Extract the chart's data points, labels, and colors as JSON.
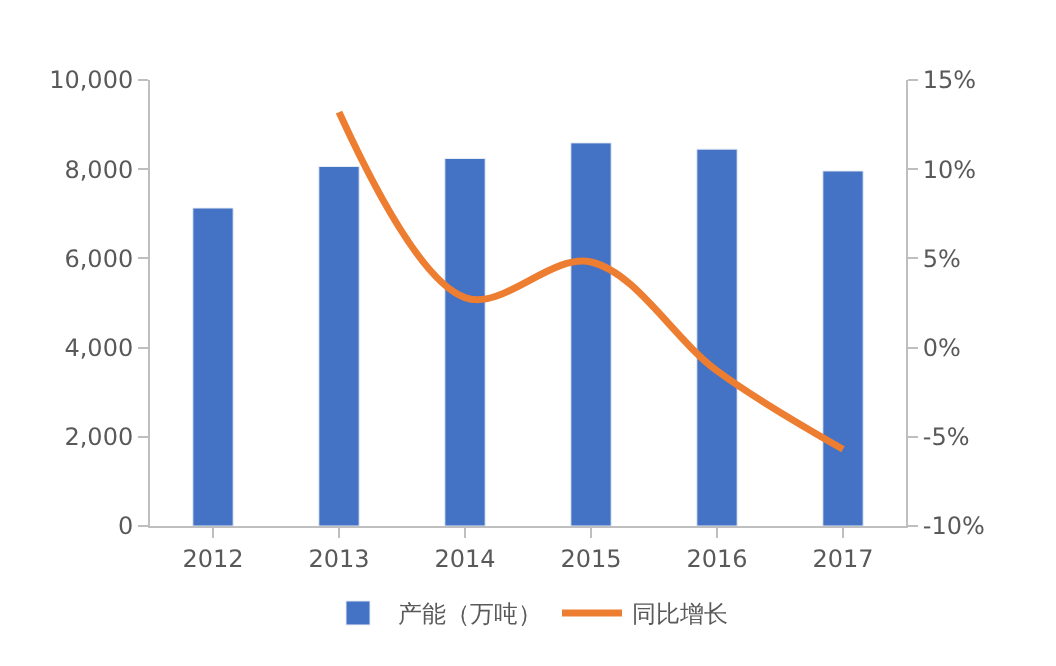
{
  "chart_data": {
    "type": "bar",
    "categories": [
      "2012",
      "2013",
      "2014",
      "2015",
      "2016",
      "2017"
    ],
    "series": [
      {
        "name": "产能（万吨）",
        "color": "#4472c4",
        "values": [
          7130,
          8060,
          8240,
          8590,
          8450,
          7960
        ]
      },
      {
        "name": "同比增长",
        "type": "line",
        "axis": "y2",
        "color": "#ed7d31",
        "values": [
          null,
          13.2,
          2.8,
          4.8,
          -1.3,
          -5.7
        ]
      }
    ],
    "ylim": [
      0,
      10000
    ],
    "yticks": [
      {
        "value": 0,
        "label": "0"
      },
      {
        "value": 2000,
        "label": "2,000"
      },
      {
        "value": 4000,
        "label": "4,000"
      },
      {
        "value": 6000,
        "label": "6,000"
      },
      {
        "value": 8000,
        "label": "8,000"
      },
      {
        "value": 10000,
        "label": "10,000"
      }
    ],
    "y2lim": [
      -10,
      15
    ],
    "y2ticks": [
      {
        "value": -10,
        "label": "-10%"
      },
      {
        "value": -5,
        "label": "-5%"
      },
      {
        "value": 0,
        "label": "0%"
      },
      {
        "value": 5,
        "label": "5%"
      },
      {
        "value": 10,
        "label": "10%"
      },
      {
        "value": 15,
        "label": "15%"
      }
    ],
    "legend": "bottom",
    "marker": "none",
    "line_style": "solid"
  }
}
